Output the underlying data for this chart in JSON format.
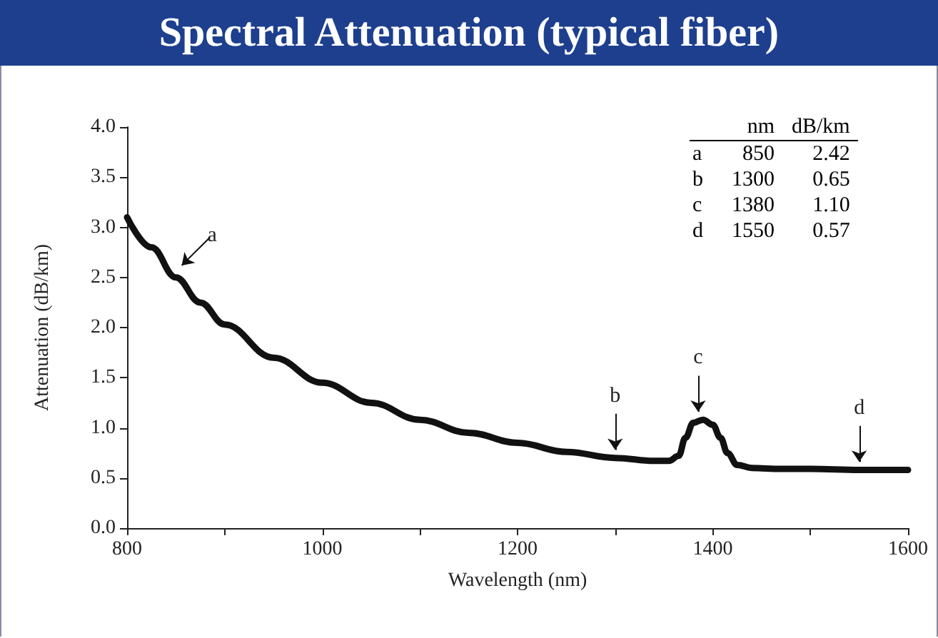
{
  "chart_data": {
    "type": "line",
    "title": "Spectral Attenuation (typical fiber)",
    "xlabel": "Wavelength (nm)",
    "ylabel": "Attenuation (dB/km)",
    "x": [
      800,
      825,
      850,
      875,
      900,
      950,
      1000,
      1050,
      1100,
      1150,
      1200,
      1250,
      1300,
      1340,
      1355,
      1365,
      1372,
      1380,
      1390,
      1400,
      1408,
      1415,
      1425,
      1440,
      1470,
      1500,
      1550,
      1600
    ],
    "values": [
      3.1,
      2.8,
      2.5,
      2.25,
      2.03,
      1.7,
      1.45,
      1.25,
      1.08,
      0.95,
      0.85,
      0.76,
      0.7,
      0.67,
      0.67,
      0.72,
      0.9,
      1.05,
      1.08,
      1.03,
      0.9,
      0.75,
      0.63,
      0.6,
      0.59,
      0.59,
      0.58,
      0.58
    ],
    "color": "#111111",
    "marker": "none",
    "line_style": "solid",
    "xlim": [
      800,
      1600
    ],
    "ylim": [
      0,
      4
    ],
    "xticks": [
      800,
      {
        "value": 900,
        "label": null
      },
      1000,
      {
        "value": 1100,
        "label": null
      },
      1200,
      {
        "value": 1300,
        "label": null
      },
      1400,
      {
        "value": 1500,
        "label": null
      },
      1600
    ],
    "yticks": [
      {
        "value": 0,
        "label": "0.0"
      },
      0.5,
      {
        "value": 1,
        "label": "1.0"
      },
      1.5,
      {
        "value": 2,
        "label": "2.0"
      },
      2.5,
      {
        "value": 3,
        "label": "3.0"
      },
      3.5,
      {
        "value": 4,
        "label": "4.0"
      }
    ],
    "annotations": [
      {
        "text": "a",
        "x": 850,
        "y": 2.5
      },
      {
        "text": "b",
        "x": 1300,
        "y": 0.7
      },
      {
        "text": "c",
        "x": 1385,
        "y": 1.08
      },
      {
        "text": "d",
        "x": 1550,
        "y": 0.58
      },
      "nm",
      "dB/km",
      "a",
      "850",
      "2.42",
      "b",
      "1300",
      "0.65",
      "c",
      "1380",
      "1.10",
      "d",
      "1550",
      "0.57"
    ]
  }
}
